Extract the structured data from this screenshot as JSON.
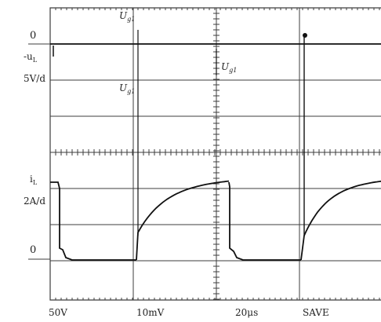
{
  "chart_data": {
    "type": "line",
    "title": "",
    "grid": true,
    "upper_trace": {
      "zero_label": "0",
      "name": "-u",
      "name_subscript": "L",
      "scale_label": "5V/d",
      "annotations": [
        {
          "text": "U",
          "subscript": "g1"
        },
        {
          "text": "U",
          "subscript": "g1"
        },
        {
          "text": "U",
          "subscript": "g1"
        }
      ]
    },
    "lower_trace": {
      "zero_label": "0",
      "name": "i",
      "name_subscript": "L",
      "scale_label": "2A/d"
    },
    "footer": [
      "50V",
      "10mV",
      "20μs",
      "SAVE"
    ],
    "colors": {
      "grid": "#3d3d3d",
      "trace": "#111111",
      "text": "#222222"
    }
  }
}
